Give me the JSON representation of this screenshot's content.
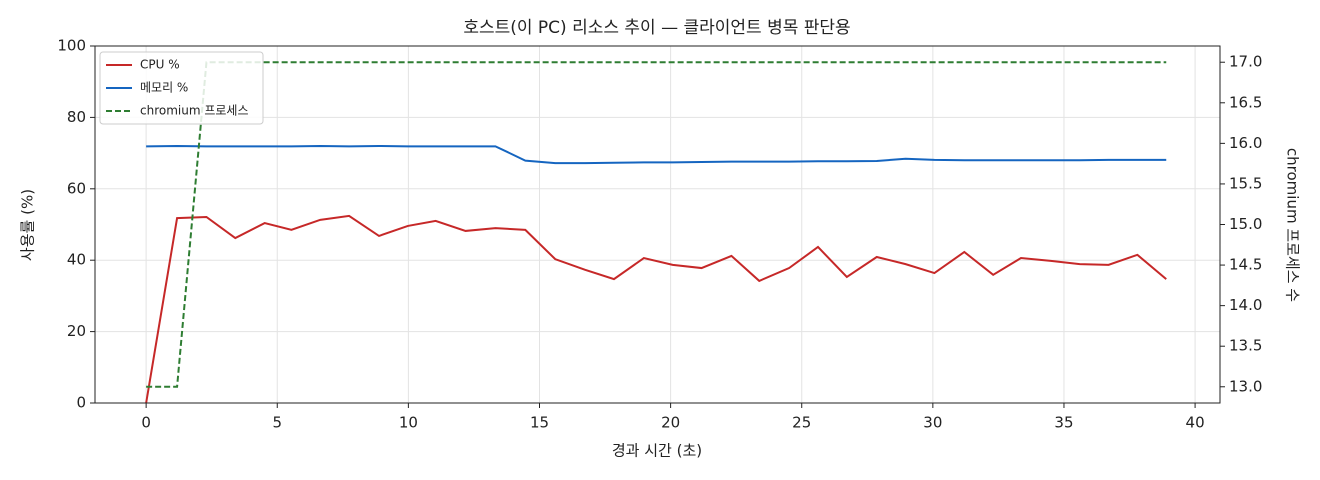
{
  "chart_data": {
    "type": "line",
    "title": "호스트(이 PC) 리소스 추이 — 클라이언트 병목 판단용",
    "x_label": "경과 시간 (초)",
    "y_label": "사용률 (%)",
    "y2_label": "chromium 프로세스 수",
    "x": [
      0,
      1.18,
      2.3,
      3.4,
      4.52,
      5.54,
      6.64,
      7.74,
      8.88,
      9.98,
      11.04,
      12.18,
      13.32,
      14.46,
      15.6,
      16.74,
      17.84,
      18.98,
      20.08,
      21.18,
      22.32,
      23.38,
      24.52,
      25.62,
      26.72,
      27.86,
      28.96,
      30.06,
      31.2,
      32.3,
      33.36,
      34.5,
      35.6,
      36.7,
      37.8,
      38.9
    ],
    "series": [
      {
        "name": "CPU %",
        "color": "#c62828",
        "linestyle": "solid",
        "axis": "y",
        "values": [
          0,
          51.8,
          52.1,
          46.2,
          50.4,
          48.5,
          51.3,
          52.4,
          46.8,
          49.6,
          51.0,
          48.2,
          49.0,
          48.5,
          40.3,
          37.3,
          34.7,
          40.6,
          38.7,
          37.8,
          41.2,
          34.2,
          37.8,
          43.7,
          35.3,
          40.9,
          38.9,
          36.4,
          42.3,
          35.9,
          40.6,
          39.8,
          38.9,
          38.7,
          41.5,
          34.7
        ]
      },
      {
        "name": "메모리 %",
        "color": "#1565c0",
        "linestyle": "solid",
        "axis": "y",
        "values": [
          71.9,
          72,
          71.9,
          71.9,
          71.9,
          71.9,
          72,
          71.9,
          72,
          71.9,
          71.9,
          71.9,
          71.9,
          67.9,
          67.2,
          67.2,
          67.3,
          67.4,
          67.4,
          67.5,
          67.6,
          67.6,
          67.6,
          67.7,
          67.7,
          67.8,
          68.4,
          68.1,
          68.0,
          68.0,
          68.0,
          68.0,
          68.0,
          68.1,
          68.1,
          68.1
        ]
      },
      {
        "name": "chromium 프로세스",
        "color": "#2e7d32",
        "linestyle": "dashed",
        "axis": "y2",
        "values": [
          13,
          13,
          17,
          17,
          17,
          17,
          17,
          17,
          17,
          17,
          17,
          17,
          17,
          17,
          17,
          17,
          17,
          17,
          17,
          17,
          17,
          17,
          17,
          17,
          17,
          17,
          17,
          17,
          17,
          17,
          17,
          17,
          17,
          17,
          17,
          17
        ]
      }
    ],
    "xlim": [
      -1.95,
      40.95
    ],
    "xticks": [
      0,
      5,
      10,
      15,
      20,
      25,
      30,
      35,
      40
    ],
    "ylim": [
      0,
      100
    ],
    "yticks": [
      0,
      20,
      40,
      60,
      80,
      100
    ],
    "y2lim": [
      12.8,
      17.2
    ],
    "y2ticks": [
      {
        "value": 13,
        "label": "13.0"
      },
      13.5,
      {
        "value": 14,
        "label": "14.0"
      },
      14.5,
      {
        "value": 15,
        "label": "15.0"
      },
      15.5,
      {
        "value": 16,
        "label": "16.0"
      },
      16.5,
      {
        "value": 17,
        "label": "17.0"
      }
    ],
    "grid": true,
    "legend": "upper left"
  }
}
